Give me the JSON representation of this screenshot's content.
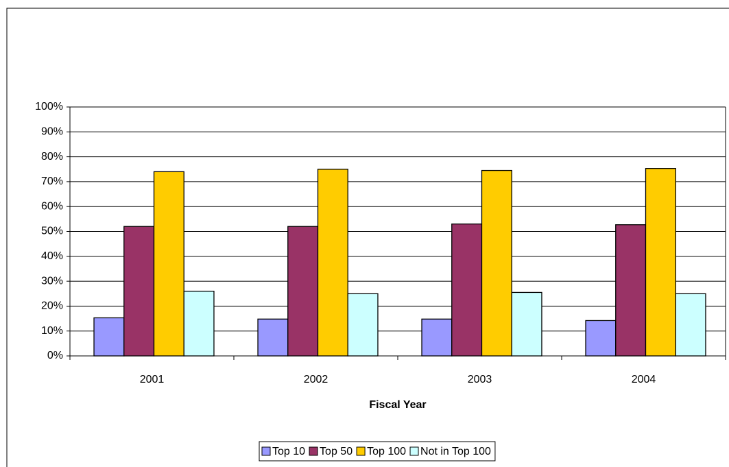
{
  "chart_data": {
    "type": "bar",
    "x_label": "Fiscal Year",
    "categories": [
      "2001",
      "2002",
      "2003",
      "2004"
    ],
    "series": [
      {
        "name": "Top 10",
        "color": "#9999ff",
        "values": [
          15.3,
          14.8,
          14.8,
          14.2
        ]
      },
      {
        "name": "Top 50",
        "color": "#993366",
        "values": [
          52,
          52,
          53,
          52.7
        ]
      },
      {
        "name": "Top 100",
        "color": "#ffcc00",
        "values": [
          74,
          75,
          74.5,
          75.3
        ]
      },
      {
        "name": "Not in Top 100",
        "color": "#ccffff",
        "values": [
          26,
          25,
          25.5,
          25
        ]
      }
    ],
    "ylim": [
      0,
      100
    ],
    "yticks": [
      {
        "value": 0,
        "label": "0%"
      },
      {
        "value": 10,
        "label": "10%"
      },
      {
        "value": 20,
        "label": "20%"
      },
      {
        "value": 30,
        "label": "30%"
      },
      {
        "value": 40,
        "label": "40%"
      },
      {
        "value": 50,
        "label": "50%"
      },
      {
        "value": 60,
        "label": "60%"
      },
      {
        "value": 70,
        "label": "70%"
      },
      {
        "value": 80,
        "label": "80%"
      },
      {
        "value": 90,
        "label": "90%"
      },
      {
        "value": 100,
        "label": "100%"
      }
    ],
    "grid": true,
    "legend": "bottom"
  }
}
